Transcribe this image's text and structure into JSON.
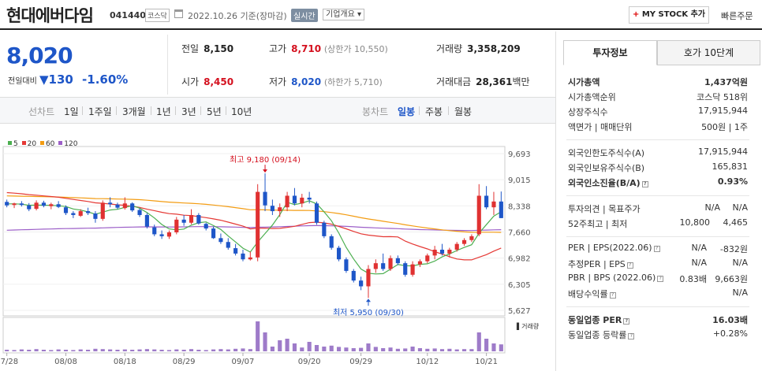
{
  "header": {
    "company": "현대에버다임",
    "code": "041440",
    "market": "코스닥",
    "date": "2022.10.26 기준(장마감)",
    "realtime": "실시간",
    "company_info": "기업개요 ▾",
    "mystock": "MY STOCK 추가",
    "mystock_plus": "+",
    "quick_order": "빠른주문"
  },
  "summary": {
    "price": "8,020",
    "change_label": "전일대비",
    "change_arrow": "▼",
    "change_value": "130",
    "change_pct": "-1.60%",
    "prev_label": "전일",
    "prev": "8,150",
    "high_label": "고가",
    "high": "8,710",
    "upper_limit": "(상한가 10,550)",
    "volume_label": "거래량",
    "volume": "3,358,209",
    "open_label": "시가",
    "open": "8,450",
    "low_label": "저가",
    "low": "8,020",
    "lower_limit": "(하한가 5,710)",
    "amount_label": "거래대금",
    "amount": "28,361",
    "amount_unit": "백만"
  },
  "periodbar": {
    "line_chart": "선차트",
    "line_periods": [
      "1일",
      "1주일",
      "3개월",
      "1년",
      "3년",
      "5년",
      "10년"
    ],
    "candle_chart": "봉차트",
    "candle_periods": [
      "일봉",
      "주봉",
      "월봉"
    ]
  },
  "chart_data": {
    "type": "candlestick",
    "ma_legend": [
      {
        "name": "5",
        "color": "#4caf50"
      },
      {
        "name": "20",
        "color": "#e53935"
      },
      {
        "name": "60",
        "color": "#f39c12"
      },
      {
        "name": "120",
        "color": "#9c5fc8"
      }
    ],
    "y_ticks": [
      "9,693",
      "9,015",
      "8,338",
      "7,660",
      "6,982",
      "6,305",
      "5,627"
    ],
    "ylim": [
      5627,
      9693
    ],
    "x_ticks": [
      "07/28",
      "08/08",
      "08/18",
      "08/29",
      "09/07",
      "09/20",
      "09/29",
      "10/12",
      "10/21"
    ],
    "annotation_high": "최고 9,180 (09/14)",
    "annotation_low": "최저 5,950 (09/30)",
    "volume_label": "거래량",
    "colors": {
      "up": "#e03131",
      "down": "#1e56c8"
    },
    "candles": [
      [
        8440,
        8500,
        8300,
        8350
      ],
      [
        8360,
        8420,
        8280,
        8400
      ],
      [
        8400,
        8460,
        8320,
        8360
      ],
      [
        8350,
        8410,
        8200,
        8250
      ],
      [
        8260,
        8480,
        8220,
        8420
      ],
      [
        8420,
        8470,
        8300,
        8340
      ],
      [
        8330,
        8420,
        8250,
        8380
      ],
      [
        8380,
        8460,
        8280,
        8310
      ],
      [
        8300,
        8350,
        8100,
        8150
      ],
      [
        8150,
        8200,
        8020,
        8100
      ],
      [
        8080,
        8250,
        8050,
        8200
      ],
      [
        8200,
        8290,
        8100,
        8150
      ],
      [
        8140,
        8200,
        7900,
        8000
      ],
      [
        8000,
        8480,
        7950,
        8420
      ],
      [
        8420,
        8560,
        8300,
        8380
      ],
      [
        8370,
        8420,
        8250,
        8290
      ],
      [
        8280,
        8560,
        8240,
        8400
      ],
      [
        8400,
        8430,
        8180,
        8220
      ],
      [
        8230,
        8270,
        8050,
        8100
      ],
      [
        8100,
        8150,
        7750,
        7800
      ],
      [
        7780,
        7850,
        7550,
        7600
      ],
      [
        7600,
        7700,
        7480,
        7550
      ],
      [
        7540,
        7700,
        7480,
        7650
      ],
      [
        7650,
        8050,
        7600,
        7980
      ],
      [
        7980,
        8100,
        7820,
        7900
      ],
      [
        7900,
        8250,
        7860,
        8100
      ],
      [
        8100,
        8150,
        7850,
        7880
      ],
      [
        7870,
        7900,
        7700,
        7750
      ],
      [
        7750,
        7800,
        7480,
        7500
      ],
      [
        7500,
        7620,
        7350,
        7400
      ],
      [
        7400,
        7500,
        7200,
        7250
      ],
      [
        7240,
        7350,
        7050,
        7100
      ],
      [
        7100,
        7200,
        6900,
        6950
      ],
      [
        6950,
        7150,
        6920,
        7000
      ],
      [
        7000,
        8900,
        6900,
        8700
      ],
      [
        8700,
        9180,
        8200,
        8350
      ],
      [
        8340,
        8500,
        8100,
        8200
      ],
      [
        8200,
        8400,
        8050,
        8300
      ],
      [
        8300,
        8700,
        8200,
        8600
      ],
      [
        8600,
        8800,
        8350,
        8400
      ],
      [
        8400,
        8650,
        8300,
        8550
      ],
      [
        8550,
        8700,
        8400,
        8500
      ],
      [
        8400,
        8450,
        7850,
        7900
      ],
      [
        7900,
        7950,
        7500,
        7550
      ],
      [
        7550,
        7600,
        7200,
        7250
      ],
      [
        7250,
        7300,
        6900,
        6950
      ],
      [
        6950,
        7000,
        6600,
        6650
      ],
      [
        6650,
        6700,
        6350,
        6400
      ],
      [
        6400,
        6500,
        6150,
        6250
      ],
      [
        6250,
        6800,
        5950,
        6700
      ],
      [
        6700,
        6950,
        6600,
        6850
      ],
      [
        6850,
        7100,
        6650,
        6700
      ],
      [
        6700,
        7050,
        6650,
        6980
      ],
      [
        6980,
        7050,
        6800,
        6850
      ],
      [
        6850,
        6900,
        6500,
        6550
      ],
      [
        6550,
        6900,
        6500,
        6820
      ],
      [
        6820,
        6950,
        6750,
        6900
      ],
      [
        6900,
        7100,
        6850,
        7050
      ],
      [
        7050,
        7300,
        6950,
        7200
      ],
      [
        7200,
        7350,
        7050,
        7100
      ],
      [
        7100,
        7250,
        7000,
        7200
      ],
      [
        7200,
        7400,
        7150,
        7350
      ],
      [
        7350,
        7500,
        7300,
        7450
      ],
      [
        7450,
        7600,
        7400,
        7550
      ],
      [
        7600,
        8900,
        7550,
        8600
      ],
      [
        8600,
        8850,
        8250,
        8300
      ],
      [
        8300,
        8700,
        8100,
        8450
      ],
      [
        8450,
        8710,
        8020,
        8020
      ]
    ],
    "volumes": [
      0.05,
      0.04,
      0.06,
      0.05,
      0.07,
      0.05,
      0.04,
      0.06,
      0.05,
      0.04,
      0.06,
      0.05,
      0.08,
      0.07,
      0.06,
      0.05,
      0.06,
      0.05,
      0.06,
      0.07,
      0.06,
      0.05,
      0.04,
      0.06,
      0.05,
      0.07,
      0.05,
      0.04,
      0.06,
      0.07,
      0.06,
      0.08,
      0.09,
      0.07,
      0.95,
      0.6,
      0.15,
      0.35,
      0.4,
      0.25,
      0.12,
      0.3,
      0.2,
      0.15,
      0.18,
      0.14,
      0.12,
      0.1,
      0.11,
      0.25,
      0.14,
      0.1,
      0.12,
      0.08,
      0.09,
      0.15,
      0.1,
      0.08,
      0.09,
      0.07,
      0.08,
      0.06,
      0.07,
      0.07,
      0.6,
      0.4,
      0.25,
      0.22
    ]
  },
  "right": {
    "tab_info": "투자정보",
    "tab_hoga": "호가 10단계",
    "market_cap_label": "시가총액",
    "market_cap": "1,437억원",
    "rank_label": "시가총액순위",
    "rank": "코스닥 518위",
    "shares_label": "상장주식수",
    "shares": "17,915,944",
    "par_label": "액면가 | 매매단위",
    "par": "500원 | 1주",
    "foreign_limit_label": "외국인한도주식수(A)",
    "foreign_limit": "17,915,944",
    "foreign_hold_label": "외국인보유주식수(B)",
    "foreign_hold": "165,831",
    "foreign_ratio_label": "외국인소진율(B/A)",
    "foreign_ratio": "0.93%",
    "opinion_label": "투자의견 | 목표주가",
    "opinion_a": "N/A",
    "opinion_b": "N/A",
    "w52_label": "52주최고 | 최저",
    "w52_high": "10,800",
    "w52_low": "4,465",
    "per_label": "PER | EPS(2022.06)",
    "per_a": "N/A",
    "per_b": "-832원",
    "eper_label": "추정PER | EPS",
    "eper_a": "N/A",
    "eper_b": "N/A",
    "pbr_label": "PBR | BPS (2022.06)",
    "pbr_a": "0.83배",
    "pbr_b": "9,663원",
    "div_label": "배당수익률",
    "div": "N/A",
    "sector_per_label": "동일업종 PER",
    "sector_per": "16.03배",
    "sector_rate_label": "동일업종 등락률",
    "sector_rate": "+0.28%"
  }
}
